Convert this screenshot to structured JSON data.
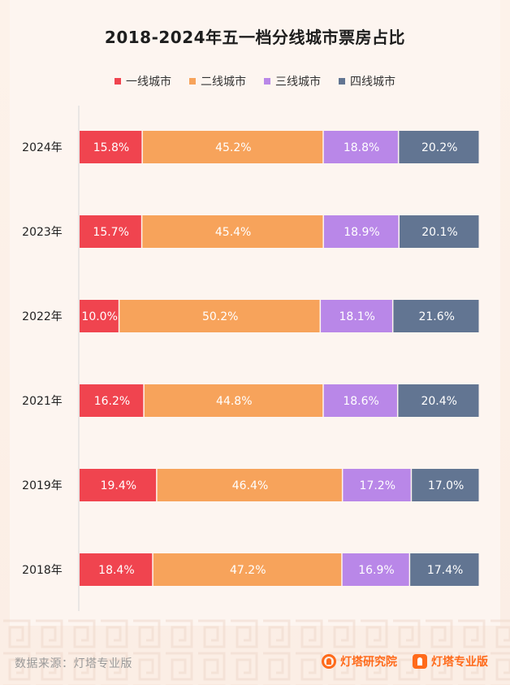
{
  "title": "2018-2024年五一档分线城市票房占比",
  "legend": [
    {
      "label": "一线城市",
      "color": "#f0444f"
    },
    {
      "label": "二线城市",
      "color": "#f7a35b"
    },
    {
      "label": "三线城市",
      "color": "#b987e8"
    },
    {
      "label": "四线城市",
      "color": "#627592"
    }
  ],
  "footer": {
    "source": "数据来源：灯塔专业版",
    "brand_1": "灯塔研究院",
    "brand_2": "灯塔专业版"
  },
  "chart_data": {
    "type": "bar",
    "orientation": "horizontal",
    "stacked": true,
    "normalized": "100%",
    "title": "2018-2024年五一档分线城市票房占比",
    "categories": [
      "2024年",
      "2023年",
      "2022年",
      "2021年",
      "2019年",
      "2018年"
    ],
    "series": [
      {
        "name": "一线城市",
        "color": "#f0444f",
        "values": [
          15.8,
          15.7,
          10.0,
          16.2,
          19.4,
          18.4
        ],
        "labels": [
          "15.8%",
          "15.7%",
          "10.0%",
          "16.2%",
          "19.4%",
          "18.4%"
        ]
      },
      {
        "name": "二线城市",
        "color": "#f7a35b",
        "values": [
          45.2,
          45.4,
          50.2,
          44.8,
          46.4,
          47.2
        ],
        "labels": [
          "45.2%",
          "45.4%",
          "50.2%",
          "44.8%",
          "46.4%",
          "47.2%"
        ]
      },
      {
        "name": "三线城市",
        "color": "#b987e8",
        "values": [
          18.8,
          18.9,
          18.1,
          18.6,
          17.2,
          16.9
        ],
        "labels": [
          "18.8%",
          "18.9%",
          "18.1%",
          "18.6%",
          "17.2%",
          "16.9%"
        ]
      },
      {
        "name": "四线城市",
        "color": "#627592",
        "values": [
          20.2,
          20.1,
          21.6,
          20.4,
          17.0,
          17.4
        ],
        "labels": [
          "20.2%",
          "20.1%",
          "21.6%",
          "20.4%",
          "17.0%",
          "17.4%"
        ]
      }
    ],
    "legend_position": "top-center",
    "grid": false
  }
}
